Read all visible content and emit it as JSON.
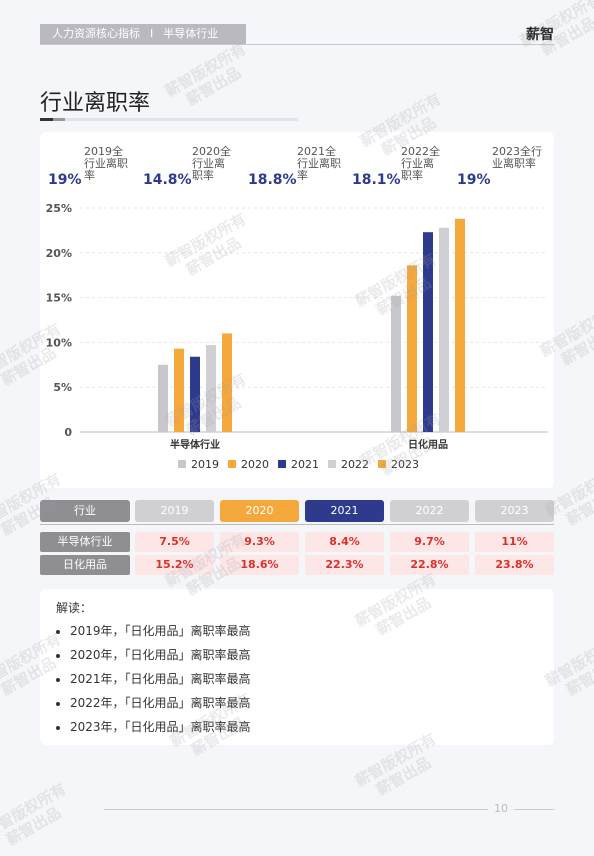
{
  "header": {
    "report": "人力资源核心指标",
    "sep": "I",
    "industry": "半导体行业",
    "brand": "薪智"
  },
  "page_title": "行业离职率",
  "summary": [
    {
      "value": "19%",
      "label": "2019全行业离职率"
    },
    {
      "value": "14.8%",
      "label": "2020全行业离职率"
    },
    {
      "value": "18.8%",
      "label": "2021全行业离职率"
    },
    {
      "value": "18.1%",
      "label": "2022全行业离职率"
    },
    {
      "value": "19%",
      "label": "2023全行业离职率"
    }
  ],
  "colors": {
    "2019": "#c8c8cc",
    "2020": "#f5a83c",
    "2021": "#2e3a8c",
    "2022": "#d0d0d4",
    "2023": "#f5a83c",
    "header_cell": "#8e8e93",
    "value_text": "#d9312b",
    "value_bg": "#fde6e6"
  },
  "chart_data": {
    "type": "bar",
    "categories": [
      "半导体行业",
      "日化用品"
    ],
    "series": [
      {
        "name": "2019",
        "values": [
          7.5,
          15.2
        ]
      },
      {
        "name": "2020",
        "values": [
          9.3,
          18.6
        ]
      },
      {
        "name": "2021",
        "values": [
          8.4,
          22.3
        ]
      },
      {
        "name": "2022",
        "values": [
          9.7,
          22.8
        ]
      },
      {
        "name": "2023",
        "values": [
          11,
          23.8
        ]
      }
    ],
    "yticks": [
      "0",
      "5%",
      "10%",
      "15%",
      "20%",
      "25%"
    ],
    "ylim": [
      0,
      25
    ],
    "legend_position": "bottom",
    "grid": true
  },
  "table": {
    "header": [
      "行业",
      "2019",
      "2020",
      "2021",
      "2022",
      "2023"
    ],
    "rows": [
      {
        "name": "半导体行业",
        "values": [
          "7.5%",
          "9.3%",
          "8.4%",
          "9.7%",
          "11%"
        ]
      },
      {
        "name": "日化用品",
        "values": [
          "15.2%",
          "18.6%",
          "22.3%",
          "22.8%",
          "23.8%"
        ]
      }
    ]
  },
  "interpretation": {
    "title": "解读：",
    "items": [
      "2019年，「日化用品」离职率最高",
      "2020年，「日化用品」离职率最高",
      "2021年，「日化用品」离职率最高",
      "2022年，「日化用品」离职率最高",
      "2023年，「日化用品」离职率最高"
    ]
  },
  "page_number": "10",
  "watermark": [
    "薪智版权所有",
    "薪智出品"
  ]
}
